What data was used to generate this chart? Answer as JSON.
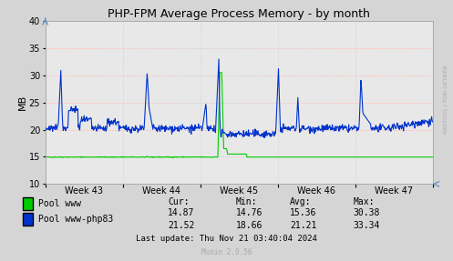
{
  "title": "PHP-FPM Average Process Memory - by month",
  "ylabel": "MB",
  "ylim": [
    10,
    40
  ],
  "yticks": [
    10,
    15,
    20,
    25,
    30,
    35,
    40
  ],
  "bg_color": "#d5d5d5",
  "plot_bg_color": "#e8e8e8",
  "grid_v_color": "#c8c8c8",
  "grid_h_color": "#ffaaaa",
  "week_labels": [
    "Week 43",
    "Week 44",
    "Week 45",
    "Week 46",
    "Week 47"
  ],
  "legend": {
    "pool_www_color": "#00cc00",
    "pool_php83_color": "#0033cc",
    "pool_www_label": "Pool www",
    "pool_php83_label": "Pool www-php83"
  },
  "stats": {
    "headers": [
      "Cur:",
      "Min:",
      "Avg:",
      "Max:"
    ],
    "pool_www": [
      "14.87",
      "14.76",
      "15.36",
      "30.38"
    ],
    "pool_php83": [
      "21.52",
      "18.66",
      "21.21",
      "33.34"
    ]
  },
  "footer": "Last update: Thu Nov 21 03:40:04 2024",
  "munin_label": "Munin 2.0.56",
  "rrdtool_label": "RRDTOOL / TOBI OETIKER"
}
